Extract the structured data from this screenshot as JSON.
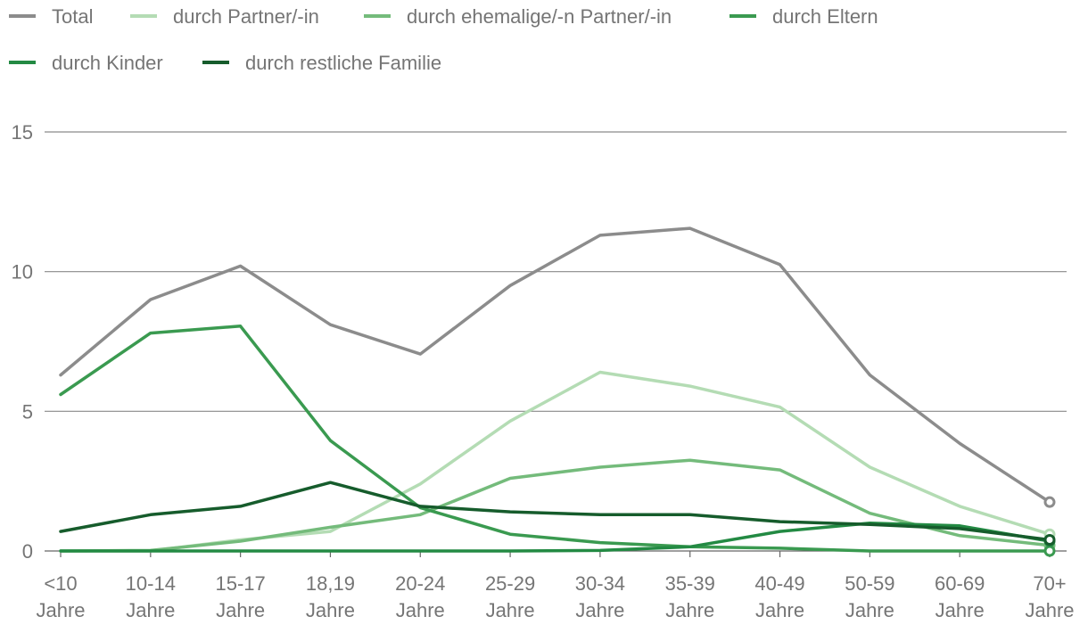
{
  "chart_data": {
    "type": "line",
    "title": "",
    "xlabel": "",
    "ylabel": "",
    "ylim": [
      0,
      15
    ],
    "yticks": [
      0,
      5,
      10,
      15
    ],
    "grid": true,
    "legend_position": "top-left",
    "categories": [
      [
        "<10",
        "Jahre"
      ],
      [
        "10-14",
        "Jahre"
      ],
      [
        "15-17",
        "Jahre"
      ],
      [
        "18,19",
        "Jahre"
      ],
      [
        "20-24",
        "Jahre"
      ],
      [
        "25-29",
        "Jahre"
      ],
      [
        "30-34",
        "Jahre"
      ],
      [
        "35-39",
        "Jahre"
      ],
      [
        "40-49",
        "Jahre"
      ],
      [
        "50-59",
        "Jahre"
      ],
      [
        "60-69",
        "Jahre"
      ],
      [
        "70+",
        "Jahre"
      ]
    ],
    "series": [
      {
        "name": "Total",
        "color": "#8c8c8c",
        "values": [
          6.3,
          9.0,
          10.2,
          8.1,
          7.05,
          9.5,
          11.3,
          11.55,
          10.25,
          6.3,
          3.85,
          1.75
        ]
      },
      {
        "name": "durch Partner/-in",
        "color": "#b4dcb4",
        "values": [
          0.0,
          0.0,
          0.4,
          0.7,
          2.4,
          4.65,
          6.4,
          5.9,
          5.15,
          3.0,
          1.6,
          0.6
        ]
      },
      {
        "name": "durch ehemalige/-n Partner/-in",
        "color": "#74bb7b",
        "values": [
          0.0,
          0.02,
          0.35,
          0.85,
          1.3,
          2.6,
          3.0,
          3.25,
          2.9,
          1.35,
          0.55,
          0.2
        ]
      },
      {
        "name": "durch Eltern",
        "color": "#3a9a50",
        "values": [
          5.6,
          7.8,
          8.05,
          3.95,
          1.55,
          0.6,
          0.3,
          0.15,
          0.1,
          0.0,
          0.0,
          0.0
        ]
      },
      {
        "name": "durch Kinder",
        "color": "#238a43",
        "values": [
          0.0,
          0.0,
          0.0,
          0.0,
          0.0,
          0.0,
          0.02,
          0.15,
          0.7,
          1.0,
          0.9,
          0.35
        ]
      },
      {
        "name": "durch restliche Familie",
        "color": "#165c2c",
        "values": [
          0.7,
          1.3,
          1.6,
          2.45,
          1.6,
          1.4,
          1.3,
          1.3,
          1.05,
          0.95,
          0.8,
          0.4
        ]
      }
    ]
  }
}
